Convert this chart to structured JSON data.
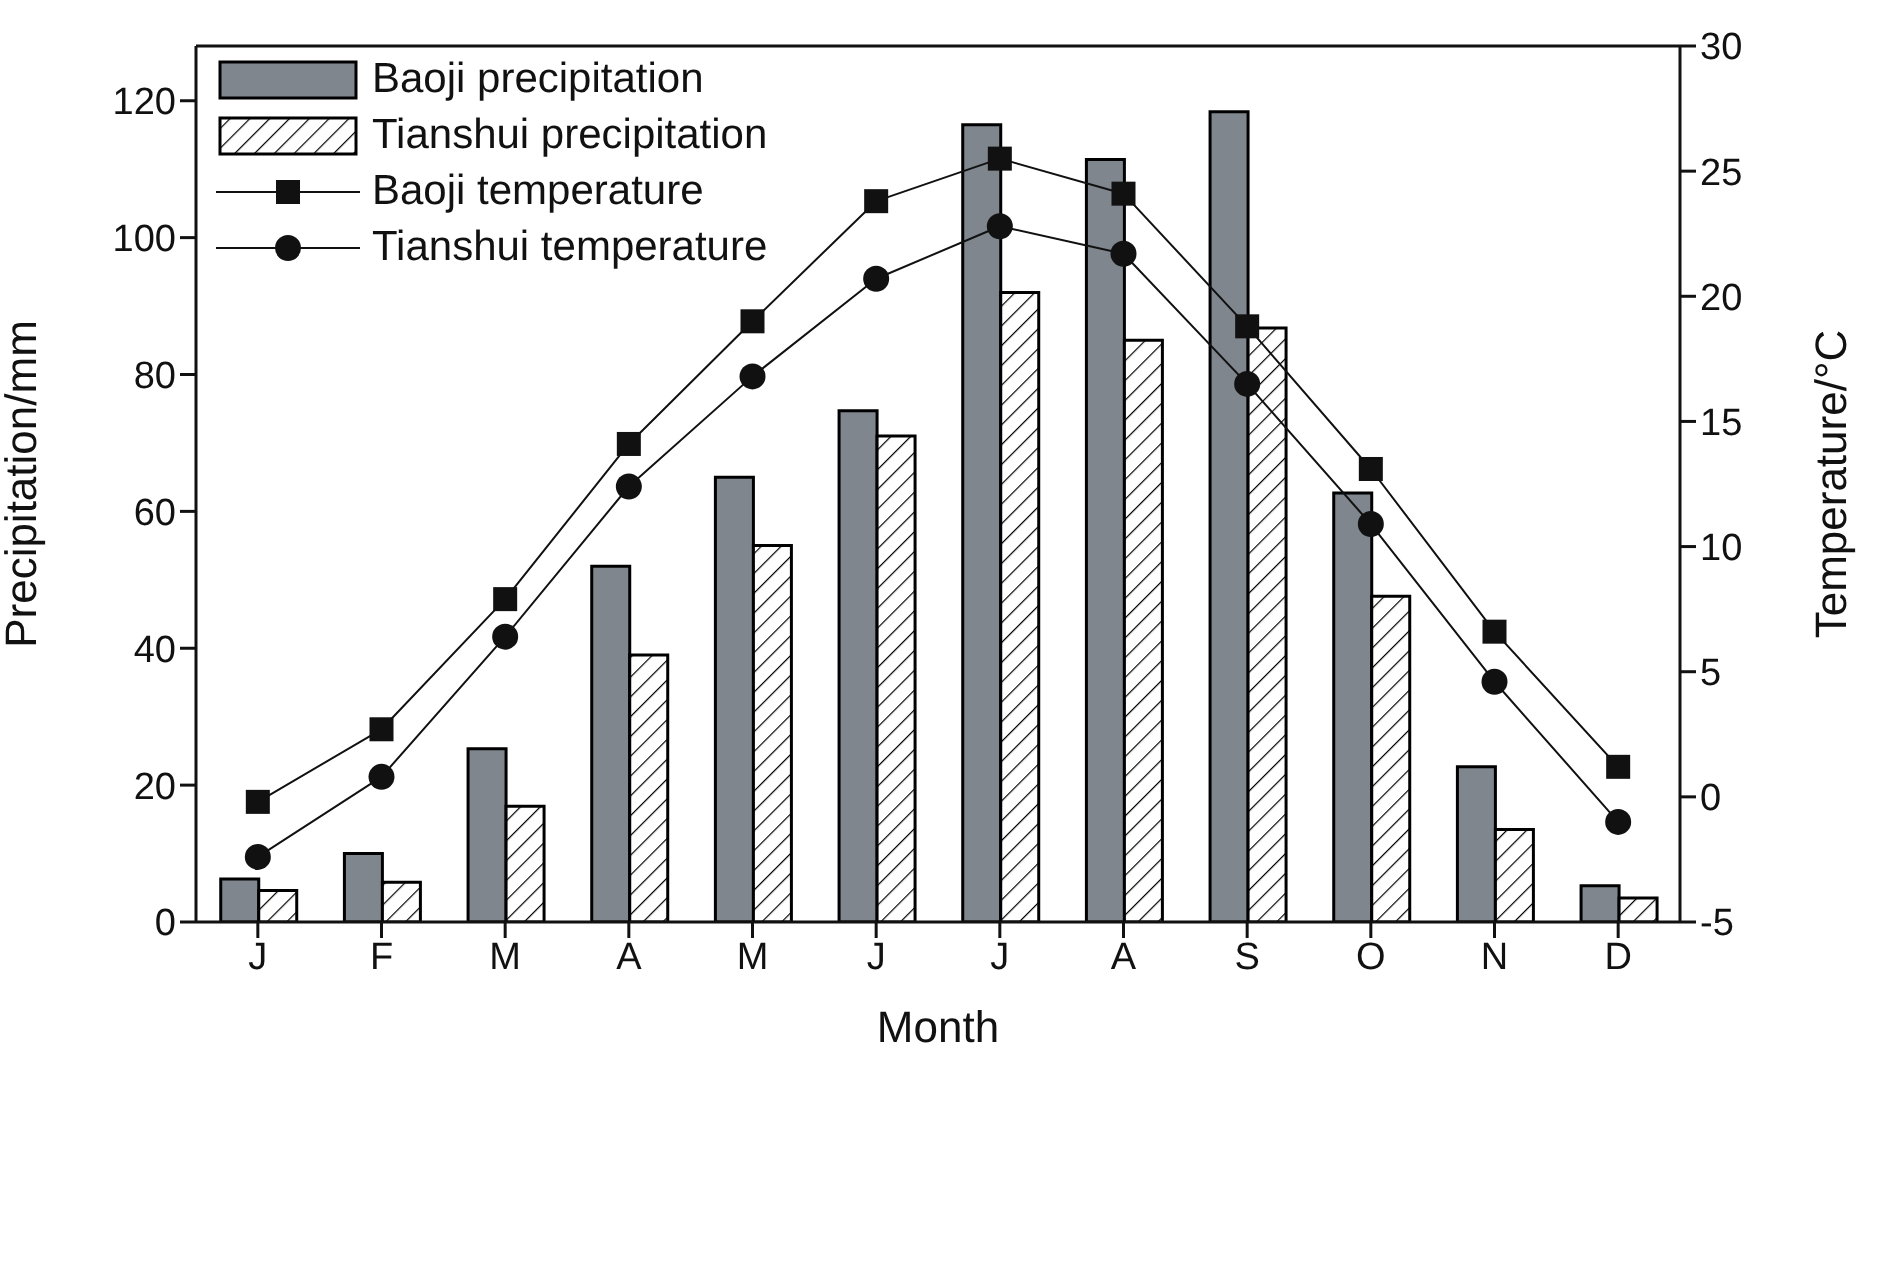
{
  "chart_data": {
    "type": "bar",
    "xlabel": "Month",
    "ylabel": "Precipitation/mm",
    "y2label": "Temperature/°C",
    "categories": [
      "J",
      "F",
      "M",
      "A",
      "M",
      "J",
      "J",
      "A",
      "S",
      "O",
      "N",
      "D"
    ],
    "series": [
      {
        "name": "Baoji precipitation",
        "color": "#7f868e",
        "values": [
          6.3,
          10,
          25.3,
          52,
          65,
          74.7,
          116.5,
          111.4,
          118.4,
          62.7,
          22.7,
          5.3
        ]
      },
      {
        "name": "Tianshui precipitation",
        "color": "#000000",
        "values": [
          4.6,
          5.8,
          16.9,
          39,
          55,
          71,
          92,
          85,
          86.8,
          47.6,
          13.5,
          3.5
        ]
      },
      {
        "name": "Baoji temperature",
        "type": "line",
        "axis": "y2",
        "marker": "square",
        "color": "#111111",
        "values": [
          -0.2,
          2.7,
          7.9,
          14.1,
          19.0,
          23.8,
          25.5,
          24.1,
          18.8,
          13.1,
          6.6,
          1.2
        ]
      },
      {
        "name": "Tianshui temperature",
        "type": "line",
        "axis": "y2",
        "marker": "circle",
        "color": "#111111",
        "values": [
          -2.4,
          0.8,
          6.4,
          12.4,
          16.8,
          20.7,
          22.8,
          21.7,
          16.5,
          10.9,
          4.6,
          -1.0
        ]
      }
    ],
    "ylim": [
      0,
      128
    ],
    "yticks": [
      0,
      20,
      40,
      60,
      80,
      100,
      120
    ],
    "y2lim": [
      -5,
      30
    ],
    "y2ticks": [
      -5,
      0,
      5,
      10,
      15,
      20,
      25,
      30
    ],
    "legend": "top left"
  }
}
